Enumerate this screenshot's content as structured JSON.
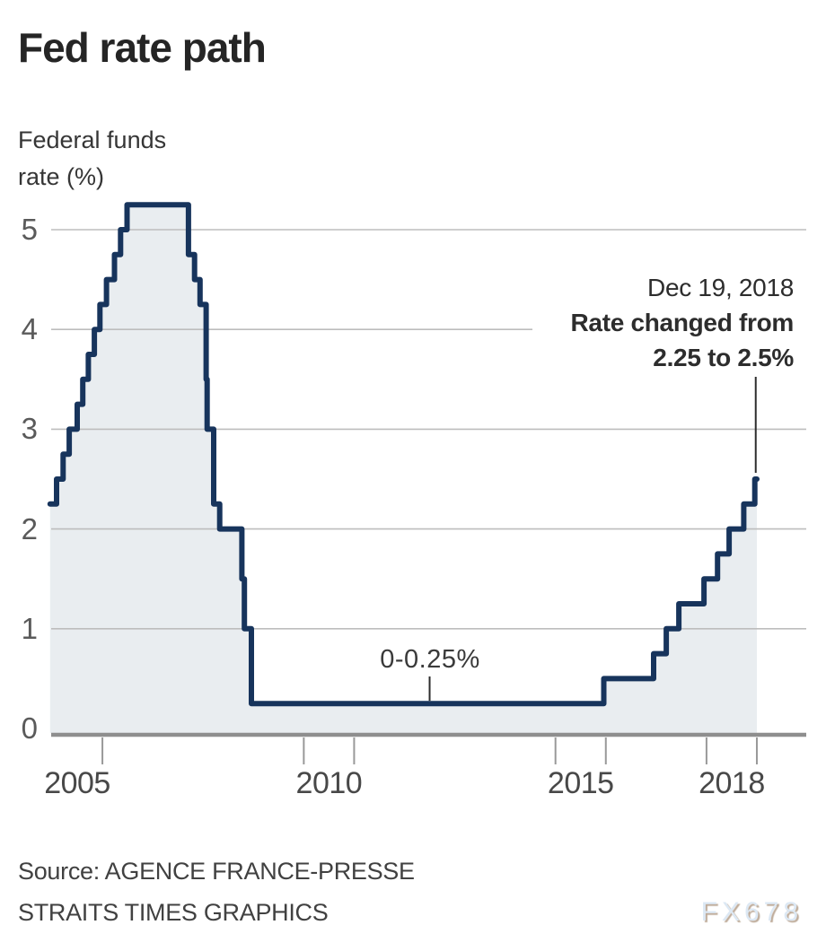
{
  "header": {
    "title": "Fed rate path",
    "y_axis_title_line1": "Federal funds",
    "y_axis_title_line2": "rate (%)"
  },
  "callout": {
    "date": "Dec 19, 2018",
    "line1": "Rate changed from",
    "line2": "2.25 to 2.5%"
  },
  "zero_band": {
    "label": "0-0.25%"
  },
  "source": {
    "line1": "Source: AGENCE FRANCE-PRESSE",
    "line2": "STRAITS TIMES GRAPHICS"
  },
  "watermark": "FX678",
  "colors": {
    "line": "#17345c",
    "area_fill": "#e9edf0",
    "gridline": "#bdbdbd",
    "axis": "#8e8e8e",
    "tick": "#999999",
    "pointer": "#2d2d2d"
  },
  "chart_data": {
    "type": "line",
    "subtype": "step-area",
    "title": "Fed rate path",
    "ylabel": "Federal funds rate (%)",
    "xlabel": "",
    "xlim": [
      2004.96,
      2019.0
    ],
    "ylim": [
      0,
      5.5
    ],
    "yticks": [
      0,
      1,
      2,
      3,
      4,
      5
    ],
    "xtick_bracket_years": [
      2006,
      2010,
      2011,
      2015,
      2016,
      2018,
      2019
    ],
    "xtick_labels": [
      2005,
      2010,
      2015,
      2018
    ],
    "grid": "horizontal",
    "legend": "none",
    "series": [
      {
        "name": "Federal funds target rate (%)",
        "step": "post",
        "points": [
          [
            2004.96,
            2.25
          ],
          [
            2005.09,
            2.5
          ],
          [
            2005.22,
            2.75
          ],
          [
            2005.34,
            3.0
          ],
          [
            2005.5,
            3.25
          ],
          [
            2005.61,
            3.5
          ],
          [
            2005.72,
            3.75
          ],
          [
            2005.84,
            4.0
          ],
          [
            2005.95,
            4.25
          ],
          [
            2006.08,
            4.5
          ],
          [
            2006.24,
            4.75
          ],
          [
            2006.36,
            5.0
          ],
          [
            2006.49,
            5.25
          ],
          [
            2007.71,
            4.75
          ],
          [
            2007.83,
            4.5
          ],
          [
            2007.94,
            4.25
          ],
          [
            2008.06,
            3.5
          ],
          [
            2008.08,
            3.0
          ],
          [
            2008.21,
            2.25
          ],
          [
            2008.33,
            2.0
          ],
          [
            2008.77,
            1.5
          ],
          [
            2008.82,
            1.0
          ],
          [
            2008.96,
            0.25
          ],
          [
            2015.96,
            0.5
          ],
          [
            2016.95,
            0.75
          ],
          [
            2017.2,
            1.0
          ],
          [
            2017.45,
            1.25
          ],
          [
            2017.95,
            1.5
          ],
          [
            2018.22,
            1.75
          ],
          [
            2018.45,
            2.0
          ],
          [
            2018.74,
            2.25
          ],
          [
            2018.96,
            2.5
          ]
        ]
      }
    ],
    "annotations": [
      {
        "text": "Dec 19, 2018 | Rate changed from 2.25 to 2.5%",
        "t": 2018.96,
        "value": 2.5
      },
      {
        "text": "0-0.25%",
        "t": 2012.5,
        "value": 0.25
      }
    ]
  }
}
